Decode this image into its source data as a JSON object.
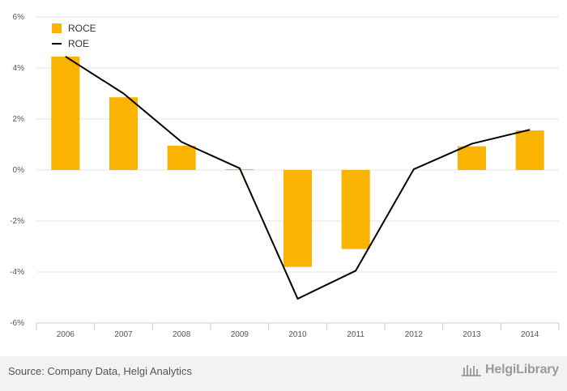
{
  "chart_data": {
    "type": "bar",
    "title": "",
    "xlabel": "",
    "ylabel": "",
    "categories": [
      "2006",
      "2007",
      "2008",
      "2009",
      "2010",
      "2011",
      "2012",
      "2013",
      "2014"
    ],
    "series": [
      {
        "name": "ROCE",
        "type": "bar",
        "values": [
          4.45,
          2.85,
          0.95,
          0.03,
          -3.8,
          -3.1,
          0.0,
          0.93,
          1.55
        ]
      },
      {
        "name": "ROE",
        "type": "line",
        "values": [
          4.45,
          3.0,
          1.1,
          0.07,
          -5.05,
          -3.95,
          0.03,
          1.03,
          1.58
        ]
      }
    ],
    "ylim": [
      -6,
      6
    ],
    "yticks": [
      -6,
      -4,
      -2,
      0,
      2,
      4,
      6
    ],
    "ytick_labels": [
      "-6%",
      "-4%",
      "-2%",
      "0%",
      "2%",
      "4%",
      "6%"
    ],
    "grid": true,
    "legend_position": "top-left",
    "colors": {
      "ROCE": "#f9b300",
      "ROE": "#000000"
    }
  },
  "footer": {
    "source": "Source: Company Data, Helgi Analytics",
    "logo_text": "HelgiLibrary"
  }
}
